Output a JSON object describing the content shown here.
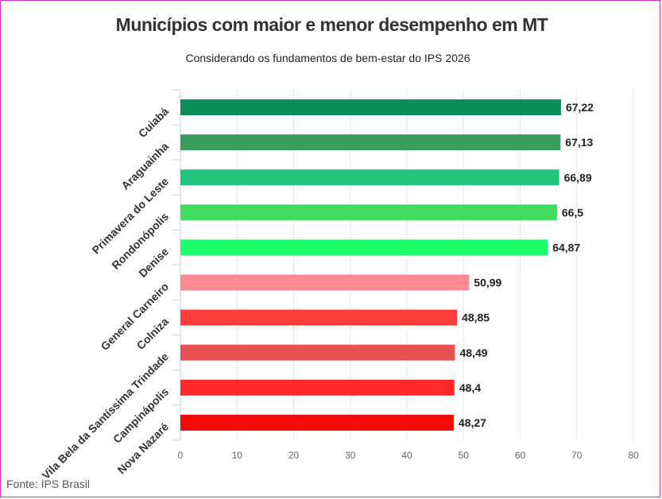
{
  "title": "Municípios com maior e menor desempenho em MT",
  "subtitle": "Considerando os fundamentos de bem-estar do IPS 2026",
  "source": "Fonte: IPS Brasil",
  "chart_data": {
    "type": "bar",
    "orientation": "horizontal",
    "title": "Municípios com maior e menor desempenho em MT",
    "subtitle": "Considerando os fundamentos de bem-estar do IPS 2026",
    "categories": [
      "Cuiabá",
      "Araguainha",
      "Primavera do Leste",
      "Rondonópolis",
      "Denise",
      "General Carneiro",
      "Colniza",
      "Vila Bela da Santíssima Trindade",
      "Campinápolis",
      "Nova Nazaré"
    ],
    "values": [
      67.22,
      67.13,
      66.89,
      66.5,
      64.87,
      50.99,
      48.85,
      48.49,
      48.4,
      48.27
    ],
    "data_labels": [
      "67,22",
      "67,13",
      "66,89",
      "66,5",
      "64,87",
      "50,99",
      "48,85",
      "48,49",
      "48,4",
      "48,27"
    ],
    "colors": [
      "#0a8f5c",
      "#389c5c",
      "#22c47e",
      "#41dc5e",
      "#1aff6a",
      "#ff8a94",
      "#ff3c3c",
      "#e85252",
      "#ff2a2a",
      "#f50a0a"
    ],
    "xlim": [
      0,
      80
    ],
    "xticks": [
      0,
      10,
      20,
      30,
      40,
      50,
      60,
      70,
      80
    ],
    "grid": true,
    "legend": "none"
  }
}
